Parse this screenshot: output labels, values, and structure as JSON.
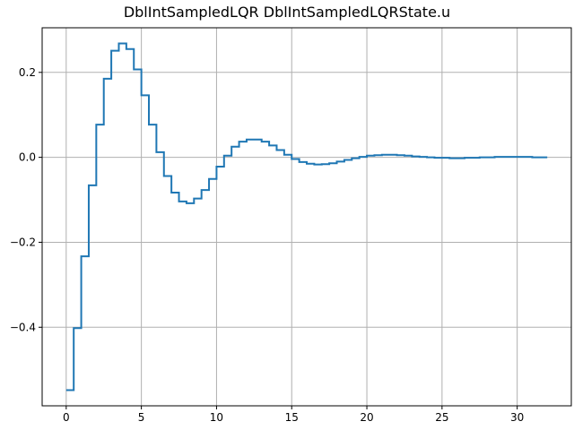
{
  "chart_data": {
    "type": "line",
    "drawstyle": "steps-post",
    "title": "DblIntSampledLQR DblIntSampledLQRState.u",
    "xlabel": "",
    "ylabel": "",
    "xlim": [
      -1.6,
      33.6
    ],
    "ylim": [
      -0.585,
      0.305
    ],
    "grid": true,
    "xticks": [
      {
        "value": 0,
        "label": "0"
      },
      {
        "value": 5,
        "label": "5"
      },
      {
        "value": 10,
        "label": "10"
      },
      {
        "value": 15,
        "label": "15"
      },
      {
        "value": 20,
        "label": "20"
      },
      {
        "value": 25,
        "label": "25"
      },
      {
        "value": 30,
        "label": "30"
      }
    ],
    "yticks": [
      {
        "value": -0.4,
        "label": "−0.4"
      },
      {
        "value": -0.2,
        "label": "−0.2"
      },
      {
        "value": 0.0,
        "label": "0.0"
      },
      {
        "value": 0.2,
        "label": "0.2"
      }
    ],
    "series": [
      {
        "color": "#1f77b4",
        "x": [
          0,
          0.5,
          1,
          1.5,
          2,
          2.5,
          3,
          3.5,
          4,
          4.5,
          5,
          5.5,
          6,
          6.5,
          7,
          7.5,
          8,
          8.5,
          9,
          9.5,
          10,
          10.5,
          11,
          11.5,
          12,
          12.5,
          13,
          13.5,
          14,
          14.5,
          15,
          15.5,
          16,
          16.5,
          17,
          17.5,
          18,
          18.5,
          19,
          19.5,
          20,
          20.5,
          21,
          21.5,
          22,
          22.5,
          23,
          23.5,
          24,
          24.5,
          25,
          25.5,
          26,
          26.5,
          27,
          27.5,
          28,
          28.5,
          29,
          29.5,
          30,
          30.5,
          31,
          31.5,
          32
        ],
        "y": [
          -0.548,
          -0.402,
          -0.233,
          -0.066,
          0.077,
          0.185,
          0.251,
          0.268,
          0.255,
          0.207,
          0.146,
          0.077,
          0.012,
          -0.044,
          -0.083,
          -0.104,
          -0.108,
          -0.097,
          -0.077,
          -0.051,
          -0.022,
          0.004,
          0.025,
          0.037,
          0.042,
          0.042,
          0.037,
          0.028,
          0.017,
          0.006,
          -0.004,
          -0.011,
          -0.015,
          -0.017,
          -0.016,
          -0.014,
          -0.01,
          -0.006,
          -0.002,
          0.001,
          0.004,
          0.005,
          0.006,
          0.006,
          0.005,
          0.004,
          0.002,
          0.001,
          0.0,
          -0.001,
          -0.001,
          -0.002,
          -0.002,
          -0.001,
          -0.001,
          0.0,
          0.0,
          0.001,
          0.001,
          0.001,
          0.001,
          0.001,
          0.0,
          0.0,
          0.0
        ]
      }
    ]
  }
}
